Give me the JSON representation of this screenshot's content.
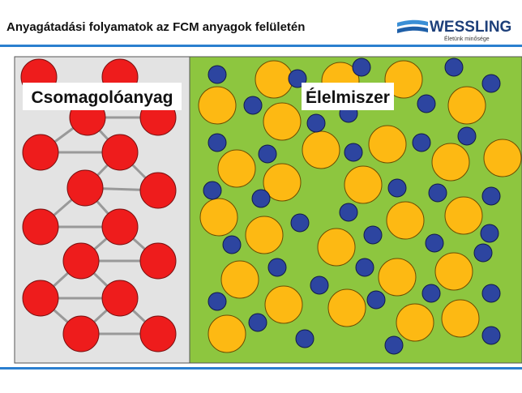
{
  "header": {
    "title": "Anyagátadási folyamatok az FCM anyagok felületén",
    "logo": "WESSLING",
    "tagline": "Életünk minősége"
  },
  "panels": {
    "left_label": "Csomagolóanyag",
    "right_label": "Élelmiszer"
  }
}
